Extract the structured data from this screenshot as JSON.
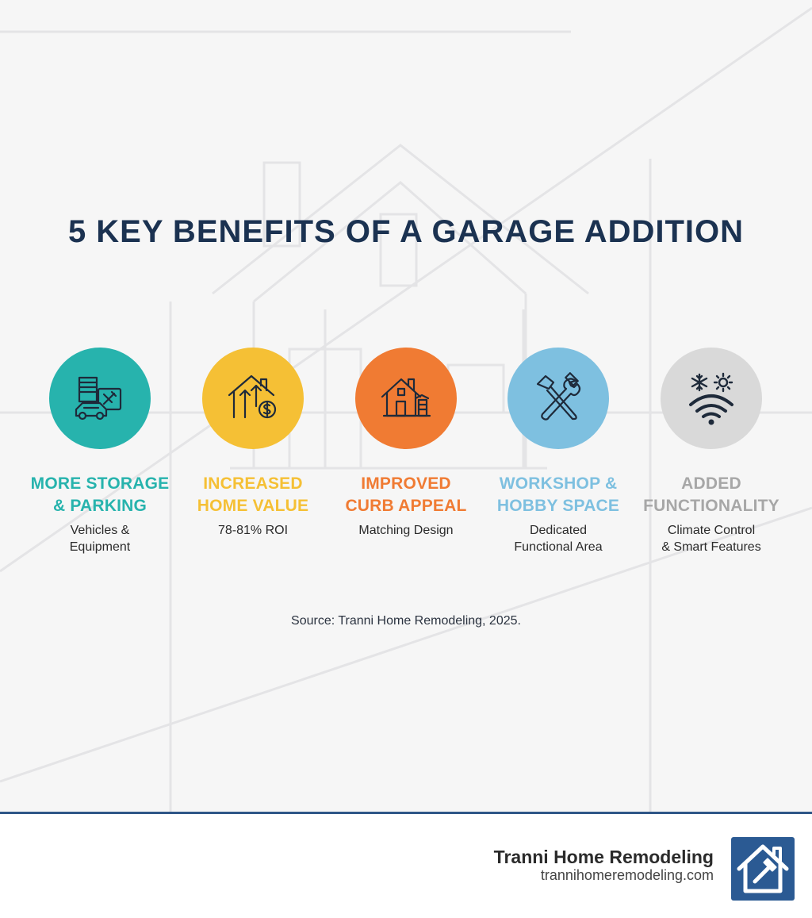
{
  "title": "5 KEY BENEFITS OF A GARAGE ADDITION",
  "benefits": [
    {
      "title_line1": "MORE STORAGE",
      "title_line2": "& PARKING",
      "subtitle": "Vehicles &\nEquipment",
      "color": "#27b3ad",
      "icon": "garage-car-tools-icon"
    },
    {
      "title_line1": "INCREASED",
      "title_line2": "HOME VALUE",
      "subtitle": "78-81% ROI",
      "color": "#f5c035",
      "icon": "house-value-up-icon"
    },
    {
      "title_line1": "IMPROVED",
      "title_line2": "CURB APPEAL",
      "subtitle": "Matching Design",
      "color": "#f07b33",
      "icon": "house-with-garage-icon"
    },
    {
      "title_line1": "WORKSHOP &",
      "title_line2": "HOBBY SPACE",
      "subtitle": "Dedicated\nFunctional Area",
      "color": "#7ec0e0",
      "icon": "hammer-wrench-icon"
    },
    {
      "title_line1": "ADDED",
      "title_line2": "FUNCTIONALITY",
      "subtitle": "Climate Control\n& Smart Features",
      "color": "#a7a7a7",
      "circle_color": "#d9d9d9",
      "icon": "climate-wifi-icon"
    }
  ],
  "source": "Source: Tranni Home Remodeling, 2025.",
  "footer": {
    "brand_name": "Tranni Home Remodeling",
    "url": "trannihomeremodeling.com",
    "logo_icon": "house-hammer-logo-icon"
  }
}
